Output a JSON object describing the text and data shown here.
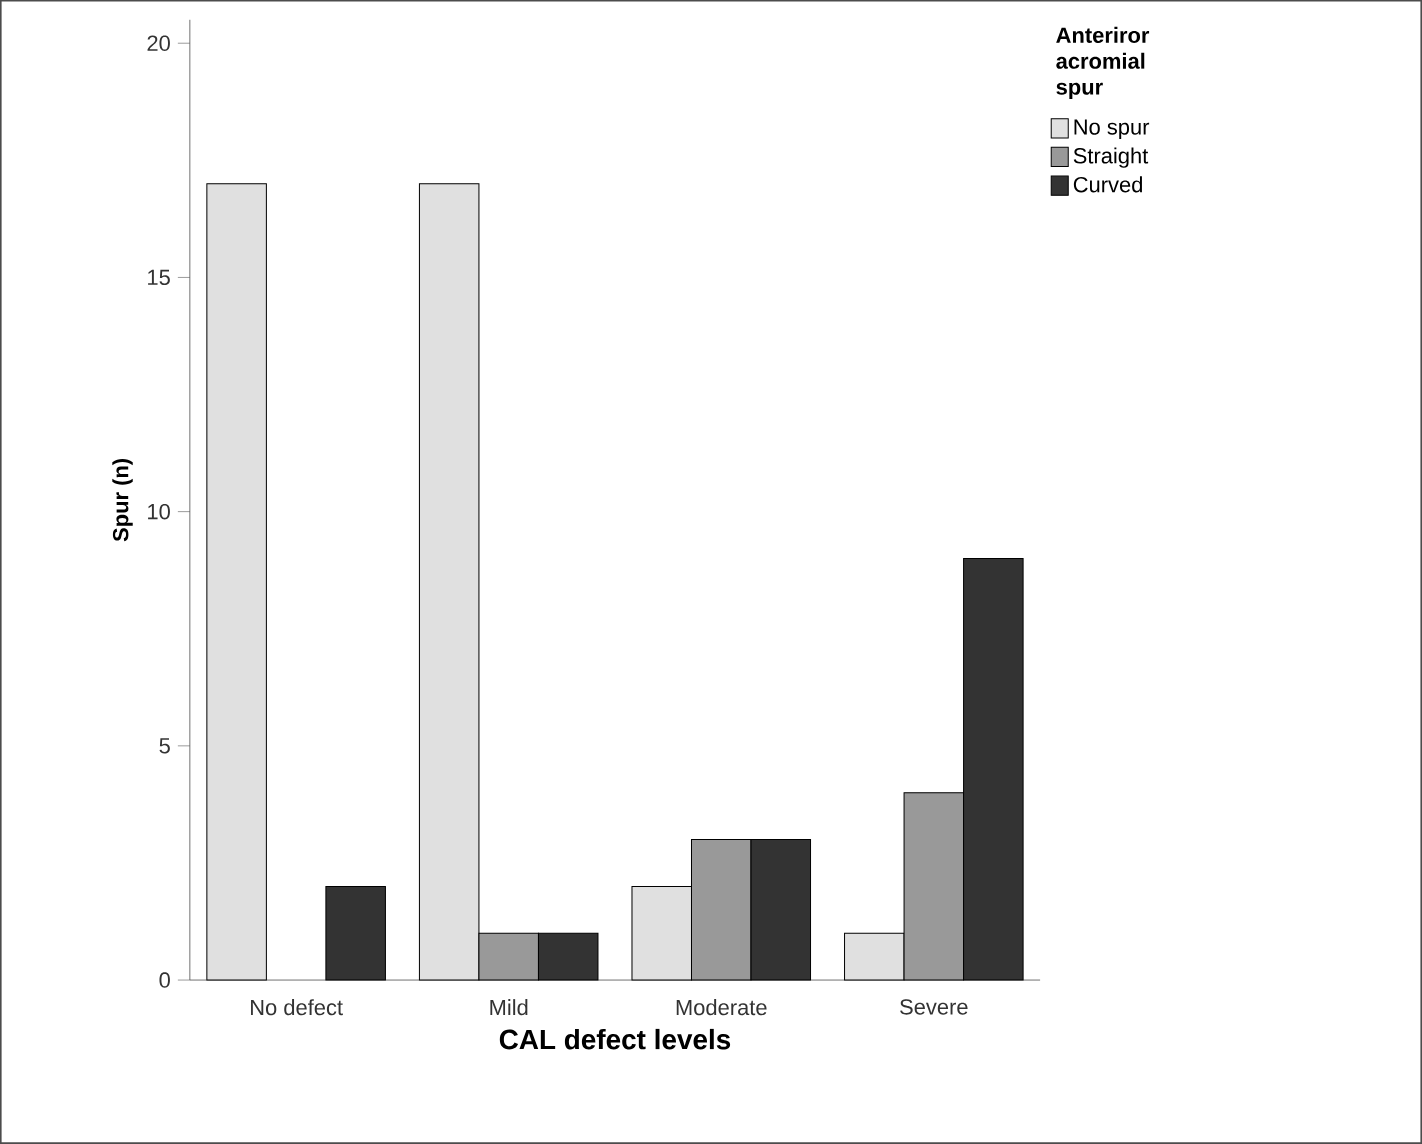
{
  "chart_data": {
    "type": "bar",
    "xlabel": "CAL defect levels",
    "ylabel": "Spur (n)",
    "legend_title": "Anteriror acromial spur",
    "legend": "top right",
    "grid": false,
    "categories": [
      "No defect",
      "Mild",
      "Moderate",
      "Severe"
    ],
    "series": [
      {
        "name": "No spur",
        "color": "#e0e0e0",
        "values": [
          17,
          17,
          2,
          1
        ]
      },
      {
        "name": "Straight",
        "color": "#999999",
        "values": [
          0,
          1,
          3,
          4
        ]
      },
      {
        "name": "Curved",
        "color": "#333333",
        "values": [
          2,
          1,
          3,
          9
        ]
      }
    ],
    "ylim": [
      0,
      20.5
    ],
    "yticks": [
      0,
      5,
      10,
      15,
      20
    ]
  }
}
